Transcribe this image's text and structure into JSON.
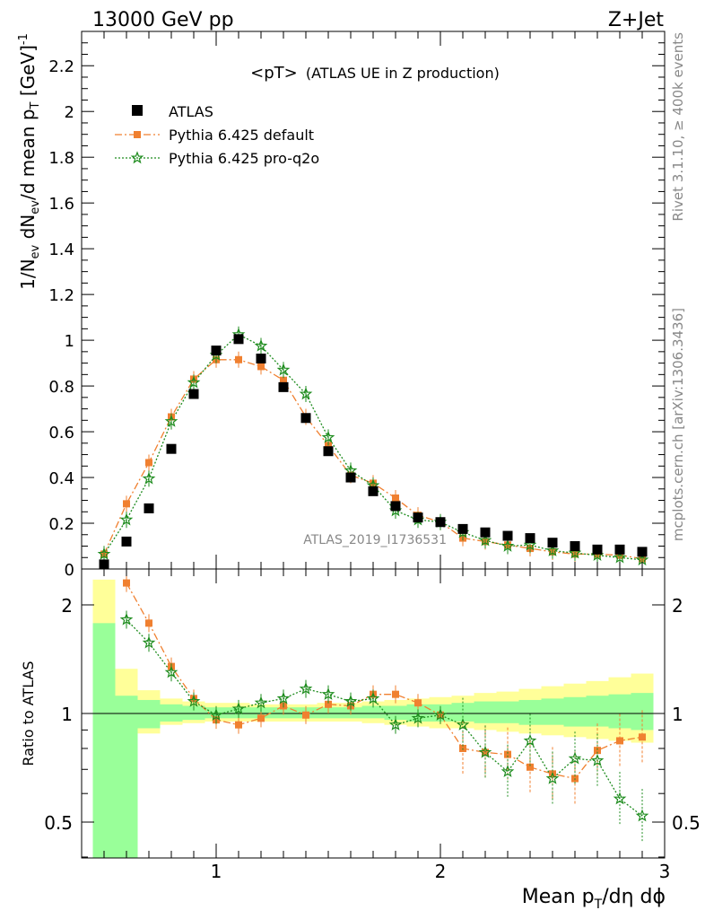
{
  "header": {
    "left": "13000 GeV pp",
    "right": "Z+Jet"
  },
  "side_text": {
    "top": "Rivet 3.1.10, ≥ 400k events",
    "bottom": "mcplots.cern.ch [arXiv:1306.3436]"
  },
  "title": "<pT>",
  "subtitle": "(ATLAS UE in Z production)",
  "analysis_id": "ATLAS_2019_I1736531",
  "ylabel_main": {
    "a": "1/N",
    "b": "ev",
    "c": " dN",
    "d": "ev",
    "e": "/d mean p",
    "f": "T",
    "g": " [GeV]",
    "h": "-1"
  },
  "ylabel_ratio": "Ratio to ATLAS",
  "xlabel": {
    "a": "Mean p",
    "b": "T",
    "c": "/dη dϕ"
  },
  "legend": [
    "ATLAS",
    "Pythia 6.425 default",
    "Pythia 6.425 pro-q2o"
  ],
  "colors": {
    "data": "#000000",
    "default": "#f08030",
    "pro": "#1e8c1e",
    "band_inner": "#99ff99",
    "band_outer": "#ffff99"
  },
  "chart_data": [
    {
      "type": "scatter",
      "title": "",
      "xlim": [
        0.4,
        3.0
      ],
      "ylim": [
        0,
        2.35
      ],
      "yticks": [
        "0",
        "0.2",
        "0.4",
        "0.6",
        "0.8",
        "1",
        "1.2",
        "1.4",
        "1.6",
        "1.8",
        "2",
        "2.2"
      ],
      "x": [
        0.5,
        0.6,
        0.7,
        0.8,
        0.9,
        1.0,
        1.1,
        1.2,
        1.3,
        1.4,
        1.5,
        1.6,
        1.7,
        1.8,
        1.9,
        2.0,
        2.1,
        2.2,
        2.3,
        2.4,
        2.5,
        2.6,
        2.7,
        2.8,
        2.9
      ],
      "series": [
        {
          "name": "ATLAS",
          "values": [
            0.02,
            0.12,
            0.265,
            0.525,
            0.765,
            0.955,
            1.005,
            0.92,
            0.795,
            0.66,
            0.515,
            0.4,
            0.34,
            0.275,
            0.225,
            0.205,
            0.175,
            0.16,
            0.145,
            0.135,
            0.115,
            0.1,
            0.085,
            0.085,
            0.075
          ]
        },
        {
          "name": "Pythia 6.425 default",
          "values": [
            0.065,
            0.285,
            0.465,
            0.665,
            0.83,
            0.915,
            0.915,
            0.885,
            0.825,
            0.665,
            0.54,
            0.41,
            0.375,
            0.31,
            0.235,
            0.205,
            0.135,
            0.12,
            0.105,
            0.09,
            0.075,
            0.065,
            0.065,
            0.06,
            0.045
          ]
        },
        {
          "name": "Pythia 6.425 pro-q2o",
          "values": [
            0.065,
            0.215,
            0.395,
            0.645,
            0.815,
            0.935,
            1.025,
            0.975,
            0.87,
            0.765,
            0.575,
            0.43,
            0.365,
            0.255,
            0.215,
            0.205,
            0.16,
            0.125,
            0.1,
            0.105,
            0.08,
            0.07,
            0.06,
            0.05,
            0.04
          ]
        }
      ]
    },
    {
      "type": "line",
      "ylabel": "Ratio to ATLAS",
      "xlim": [
        0.4,
        3.0
      ],
      "ylim": [
        0.33,
        2.35
      ],
      "xticks": [
        "1",
        "2",
        "3"
      ],
      "yticks": [
        "0.5",
        "1",
        "2"
      ],
      "x": [
        0.6,
        0.7,
        0.8,
        0.9,
        1.0,
        1.1,
        1.2,
        1.3,
        1.4,
        1.5,
        1.6,
        1.7,
        1.8,
        1.9,
        2.0,
        2.1,
        2.2,
        2.3,
        2.4,
        2.5,
        2.6,
        2.7,
        2.8,
        2.9
      ],
      "series": [
        {
          "name": "Pythia 6.425 default",
          "values": [
            2.3,
            1.78,
            1.35,
            1.1,
            0.96,
            0.93,
            0.97,
            1.05,
            0.99,
            1.06,
            1.05,
            1.13,
            1.13,
            1.07,
            0.99,
            0.8,
            0.78,
            0.77,
            0.71,
            0.68,
            0.66,
            0.79,
            0.84,
            0.86
          ]
        },
        {
          "name": "Pythia 6.425 pro-q2o",
          "values": [
            1.82,
            1.57,
            1.3,
            1.08,
            0.99,
            1.03,
            1.07,
            1.1,
            1.17,
            1.13,
            1.08,
            1.1,
            0.93,
            0.97,
            0.99,
            0.93,
            0.78,
            0.69,
            0.84,
            0.66,
            0.75,
            0.74,
            0.58,
            0.52
          ]
        }
      ],
      "bands": {
        "x_edges": [
          0.45,
          0.55,
          0.65,
          0.75,
          0.85,
          0.95,
          1.05,
          1.15,
          1.25,
          1.35,
          1.45,
          1.55,
          1.65,
          1.75,
          1.85,
          1.95,
          2.05,
          2.15,
          2.25,
          2.35,
          2.45,
          2.55,
          2.65,
          2.75,
          2.85,
          2.95
        ],
        "inner_lo": [
          0.33,
          0.33,
          0.91,
          0.95,
          0.96,
          0.97,
          0.97,
          0.97,
          0.97,
          0.97,
          0.97,
          0.97,
          0.97,
          0.96,
          0.95,
          0.95,
          0.95,
          0.94,
          0.94,
          0.93,
          0.93,
          0.92,
          0.92,
          0.91,
          0.9
        ],
        "inner_hi": [
          1.78,
          1.12,
          1.09,
          1.06,
          1.05,
          1.04,
          1.04,
          1.04,
          1.04,
          1.04,
          1.04,
          1.04,
          1.05,
          1.05,
          1.06,
          1.06,
          1.07,
          1.08,
          1.08,
          1.09,
          1.1,
          1.11,
          1.12,
          1.13,
          1.14
        ],
        "outer_lo": [
          0.33,
          0.78,
          0.88,
          0.93,
          0.94,
          0.95,
          0.95,
          0.95,
          0.95,
          0.95,
          0.95,
          0.95,
          0.94,
          0.93,
          0.92,
          0.91,
          0.91,
          0.9,
          0.89,
          0.88,
          0.87,
          0.86,
          0.85,
          0.84,
          0.83
        ],
        "outer_hi": [
          2.35,
          1.33,
          1.16,
          1.1,
          1.08,
          1.07,
          1.07,
          1.06,
          1.06,
          1.06,
          1.07,
          1.07,
          1.08,
          1.09,
          1.1,
          1.11,
          1.12,
          1.14,
          1.15,
          1.17,
          1.19,
          1.21,
          1.23,
          1.26,
          1.29
        ]
      }
    }
  ]
}
